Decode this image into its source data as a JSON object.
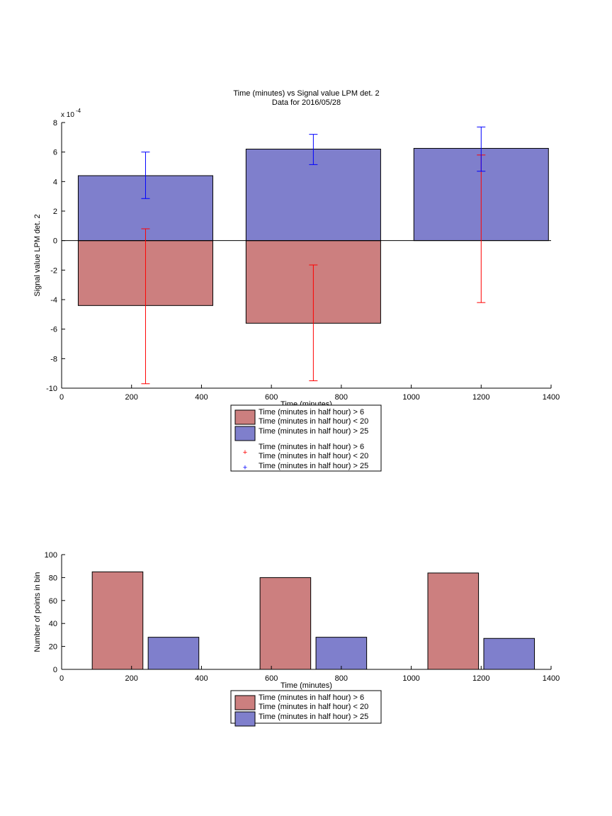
{
  "colors": {
    "red_bar": "#cc7f7f",
    "blue_bar": "#7f7fcc",
    "red_err": "#ff0000",
    "blue_err": "#0000ff"
  },
  "chart_data": [
    {
      "type": "bar",
      "title": [
        "Time (minutes) vs Signal value LPM det. 2",
        "Data for 2016/05/28"
      ],
      "xlabel": "Time (minutes)",
      "ylabel": "Signal value LPM det. 2",
      "y_exponent_label": "x 10",
      "y_exponent_power": "-4",
      "xlim": [
        0,
        1400
      ],
      "ylim": [
        -10,
        8
      ],
      "xticks": [
        0,
        200,
        400,
        600,
        800,
        1000,
        1200,
        1400
      ],
      "yticks": [
        -10,
        -8,
        -6,
        -4,
        -2,
        0,
        2,
        4,
        6,
        8
      ],
      "bar_width": 385,
      "series": [
        {
          "name": "Time (minutes in half hour) > 6\nTime (minutes in half hour) < 20",
          "color": "#cc7f7f",
          "x": [
            240,
            720
          ],
          "values": [
            -4.4,
            -5.6
          ]
        },
        {
          "name": "Time (minutes in half hour) > 25",
          "color": "#7f7fcc",
          "x": [
            240,
            720,
            1200
          ],
          "values": [
            4.4,
            6.2,
            6.25
          ]
        }
      ],
      "errorbars": [
        {
          "name": "Time (minutes in half hour) > 6\nTime (minutes in half hour) < 20",
          "color": "#ff0000",
          "x": [
            240,
            720,
            1200
          ],
          "low": [
            -9.7,
            -9.5,
            -4.2
          ],
          "high": [
            0.8,
            -1.65,
            5.8
          ]
        },
        {
          "name": "Time (minutes in half hour) > 25",
          "color": "#0000ff",
          "x": [
            240,
            720,
            1200
          ],
          "low": [
            2.85,
            5.15,
            4.7
          ],
          "high": [
            6.0,
            7.2,
            7.7
          ]
        }
      ],
      "legend": {
        "placement": "bottom-center",
        "entries": [
          {
            "kind": "patch",
            "color": "#cc7f7f",
            "lines": [
              "Time (minutes in half hour) > 6",
              "Time (minutes in half hour) < 20"
            ]
          },
          {
            "kind": "patch",
            "color": "#7f7fcc",
            "lines": [
              "Time (minutes in half hour) > 25"
            ]
          },
          {
            "kind": "marker",
            "color": "#ff0000",
            "lines": [
              "Time (minutes in half hour) > 6",
              "Time (minutes in half hour) < 20"
            ]
          },
          {
            "kind": "marker",
            "color": "#0000ff",
            "lines": [
              "Time (minutes in half hour) > 25"
            ]
          }
        ]
      }
    },
    {
      "type": "bar",
      "xlabel": "Time (minutes)",
      "ylabel": "Number of points in bin",
      "xlim": [
        0,
        1400
      ],
      "ylim": [
        0,
        100
      ],
      "xticks": [
        0,
        200,
        400,
        600,
        800,
        1000,
        1200,
        1400
      ],
      "yticks": [
        0,
        20,
        40,
        60,
        80,
        100
      ],
      "bar_width": 145,
      "series": [
        {
          "name": "Time (minutes in half hour) > 6\nTime (minutes in half hour) < 20",
          "color": "#cc7f7f",
          "x": [
            160,
            640,
            1120
          ],
          "values": [
            85,
            80,
            84
          ]
        },
        {
          "name": "Time (minutes in half hour) > 25",
          "color": "#7f7fcc",
          "x": [
            320,
            800,
            1280
          ],
          "values": [
            28,
            28,
            27
          ]
        }
      ],
      "legend": {
        "placement": "bottom-center",
        "entries": [
          {
            "kind": "patch",
            "color": "#cc7f7f",
            "lines": [
              "Time (minutes in half hour) > 6",
              "Time (minutes in half hour) < 20"
            ]
          },
          {
            "kind": "patch",
            "color": "#7f7fcc",
            "lines": [
              "Time (minutes in half hour) > 25"
            ]
          }
        ]
      }
    }
  ]
}
